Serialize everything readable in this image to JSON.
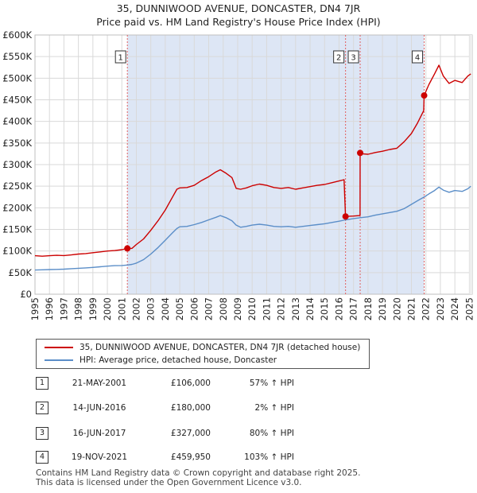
{
  "chart_data": {
    "type": "line",
    "title": "35, DUNNIWOOD AVENUE, DONCASTER, DN4 7JR",
    "subtitle": "Price paid vs. HM Land Registry's House Price Index (HPI)",
    "xlabel": "",
    "ylabel": "",
    "xlim": [
      1995,
      2025.2
    ],
    "ylim": [
      0,
      600000
    ],
    "x_ticks": [
      1995,
      1996,
      1997,
      1998,
      1999,
      2000,
      2001,
      2002,
      2003,
      2004,
      2005,
      2006,
      2007,
      2008,
      2009,
      2010,
      2011,
      2012,
      2013,
      2014,
      2015,
      2016,
      2017,
      2018,
      2019,
      2020,
      2021,
      2022,
      2023,
      2024,
      2025
    ],
    "y_ticks": [
      0,
      50000,
      100000,
      150000,
      200000,
      250000,
      300000,
      350000,
      400000,
      450000,
      500000,
      550000,
      600000
    ],
    "y_tick_labels": [
      "£0",
      "£50K",
      "£100K",
      "£150K",
      "£200K",
      "£250K",
      "£300K",
      "£350K",
      "£400K",
      "£450K",
      "£500K",
      "£550K",
      "£600K"
    ],
    "shaded_range": [
      2001.38,
      2021.88
    ],
    "colors": {
      "property": "#cc0000",
      "hpi": "#5b8ec8",
      "shade": "#dde6f5",
      "grid": "#d9d9d9",
      "vline": "#e06060"
    },
    "series": [
      {
        "name": "35, DUNNIWOOD AVENUE, DONCASTER, DN4 7JR (detached house)",
        "color": "#cc0000",
        "points": [
          [
            1995.0,
            89000
          ],
          [
            1995.5,
            88000
          ],
          [
            1996.0,
            89000
          ],
          [
            1996.5,
            90000
          ],
          [
            1997.0,
            89500
          ],
          [
            1997.5,
            91000
          ],
          [
            1998.0,
            93000
          ],
          [
            1998.5,
            94000
          ],
          [
            1999.0,
            96000
          ],
          [
            1999.5,
            98000
          ],
          [
            2000.0,
            100000
          ],
          [
            2000.5,
            101000
          ],
          [
            2001.0,
            103000
          ],
          [
            2001.38,
            106000
          ],
          [
            2001.7,
            106000
          ],
          [
            2002.0,
            115000
          ],
          [
            2002.5,
            128000
          ],
          [
            2003.0,
            148000
          ],
          [
            2003.5,
            170000
          ],
          [
            2004.0,
            195000
          ],
          [
            2004.5,
            225000
          ],
          [
            2004.8,
            243000
          ],
          [
            2005.0,
            246000
          ],
          [
            2005.5,
            247000
          ],
          [
            2006.0,
            252000
          ],
          [
            2006.5,
            263000
          ],
          [
            2007.0,
            272000
          ],
          [
            2007.5,
            283000
          ],
          [
            2007.8,
            288000
          ],
          [
            2008.2,
            280000
          ],
          [
            2008.6,
            270000
          ],
          [
            2008.9,
            245000
          ],
          [
            2009.2,
            243000
          ],
          [
            2009.6,
            246000
          ],
          [
            2010.0,
            251000
          ],
          [
            2010.5,
            255000
          ],
          [
            2011.0,
            252000
          ],
          [
            2011.5,
            247000
          ],
          [
            2012.0,
            245000
          ],
          [
            2012.5,
            247000
          ],
          [
            2013.0,
            243000
          ],
          [
            2013.5,
            246000
          ],
          [
            2014.0,
            249000
          ],
          [
            2014.5,
            252000
          ],
          [
            2015.0,
            254000
          ],
          [
            2015.5,
            258000
          ],
          [
            2016.0,
            262000
          ],
          [
            2016.35,
            265000
          ],
          [
            2016.45,
            180000
          ],
          [
            2017.0,
            181000
          ],
          [
            2017.45,
            182000
          ],
          [
            2017.46,
            327000
          ],
          [
            2017.6,
            325000
          ],
          [
            2018.0,
            324000
          ],
          [
            2018.5,
            328000
          ],
          [
            2019.0,
            331000
          ],
          [
            2019.5,
            335000
          ],
          [
            2020.0,
            338000
          ],
          [
            2020.5,
            353000
          ],
          [
            2021.0,
            372000
          ],
          [
            2021.4,
            395000
          ],
          [
            2021.85,
            425000
          ],
          [
            2021.88,
            459950
          ],
          [
            2022.2,
            485000
          ],
          [
            2022.6,
            510000
          ],
          [
            2022.9,
            530000
          ],
          [
            2023.2,
            505000
          ],
          [
            2023.6,
            488000
          ],
          [
            2024.0,
            495000
          ],
          [
            2024.5,
            490000
          ],
          [
            2024.9,
            505000
          ],
          [
            2025.1,
            510000
          ]
        ]
      },
      {
        "name": "HPI: Average price, detached house, Doncaster",
        "color": "#5b8ec8",
        "points": [
          [
            1995.0,
            56000
          ],
          [
            1995.5,
            56500
          ],
          [
            1996.0,
            57000
          ],
          [
            1996.5,
            57500
          ],
          [
            1997.0,
            58000
          ],
          [
            1997.5,
            59000
          ],
          [
            1998.0,
            60000
          ],
          [
            1998.5,
            61000
          ],
          [
            1999.0,
            62000
          ],
          [
            1999.5,
            63500
          ],
          [
            2000.0,
            65000
          ],
          [
            2000.5,
            66000
          ],
          [
            2001.0,
            66500
          ],
          [
            2001.38,
            67500
          ],
          [
            2001.7,
            69000
          ],
          [
            2002.0,
            72000
          ],
          [
            2002.5,
            80000
          ],
          [
            2003.0,
            93000
          ],
          [
            2003.5,
            108000
          ],
          [
            2004.0,
            125000
          ],
          [
            2004.5,
            142000
          ],
          [
            2004.8,
            152000
          ],
          [
            2005.0,
            156000
          ],
          [
            2005.5,
            157000
          ],
          [
            2006.0,
            161000
          ],
          [
            2006.5,
            166000
          ],
          [
            2007.0,
            172000
          ],
          [
            2007.5,
            178000
          ],
          [
            2007.8,
            182000
          ],
          [
            2008.2,
            177000
          ],
          [
            2008.6,
            170000
          ],
          [
            2008.9,
            160000
          ],
          [
            2009.2,
            155000
          ],
          [
            2009.6,
            157000
          ],
          [
            2010.0,
            160000
          ],
          [
            2010.5,
            162000
          ],
          [
            2011.0,
            160000
          ],
          [
            2011.5,
            157000
          ],
          [
            2012.0,
            156000
          ],
          [
            2012.5,
            157000
          ],
          [
            2013.0,
            155000
          ],
          [
            2013.5,
            157000
          ],
          [
            2014.0,
            159000
          ],
          [
            2014.5,
            161000
          ],
          [
            2015.0,
            163000
          ],
          [
            2015.5,
            166000
          ],
          [
            2016.0,
            169000
          ],
          [
            2016.45,
            172000
          ],
          [
            2017.0,
            175000
          ],
          [
            2017.46,
            177000
          ],
          [
            2018.0,
            179000
          ],
          [
            2018.5,
            183000
          ],
          [
            2019.0,
            186000
          ],
          [
            2019.5,
            189000
          ],
          [
            2020.0,
            192000
          ],
          [
            2020.5,
            198000
          ],
          [
            2021.0,
            208000
          ],
          [
            2021.5,
            218000
          ],
          [
            2021.88,
            225000
          ],
          [
            2022.2,
            232000
          ],
          [
            2022.6,
            240000
          ],
          [
            2022.9,
            248000
          ],
          [
            2023.2,
            241000
          ],
          [
            2023.6,
            236000
          ],
          [
            2024.0,
            240000
          ],
          [
            2024.5,
            238000
          ],
          [
            2024.9,
            244000
          ],
          [
            2025.1,
            250000
          ]
        ]
      }
    ],
    "sales": [
      {
        "num": "1",
        "x": 2001.38,
        "price": 106000
      },
      {
        "num": "2",
        "x": 2016.45,
        "price": 180000
      },
      {
        "num": "3",
        "x": 2017.46,
        "price": 327000
      },
      {
        "num": "4",
        "x": 2021.88,
        "price": 459950
      }
    ]
  },
  "legend": {
    "property_label": "35, DUNNIWOOD AVENUE, DONCASTER, DN4 7JR (detached house)",
    "hpi_label": "HPI: Average price, detached house, Doncaster"
  },
  "table": {
    "rows": [
      {
        "num": "1",
        "date": "21-MAY-2001",
        "price": "£106,000",
        "hpi": "57% ↑ HPI"
      },
      {
        "num": "2",
        "date": "14-JUN-2016",
        "price": "£180,000",
        "hpi": "2% ↑ HPI"
      },
      {
        "num": "3",
        "date": "16-JUN-2017",
        "price": "£327,000",
        "hpi": "80% ↑ HPI"
      },
      {
        "num": "4",
        "date": "19-NOV-2021",
        "price": "£459,950",
        "hpi": "103% ↑ HPI"
      }
    ]
  },
  "footer": {
    "line1": "Contains HM Land Registry data © Crown copyright and database right 2025.",
    "line2": "This data is licensed under the Open Government Licence v3.0."
  }
}
